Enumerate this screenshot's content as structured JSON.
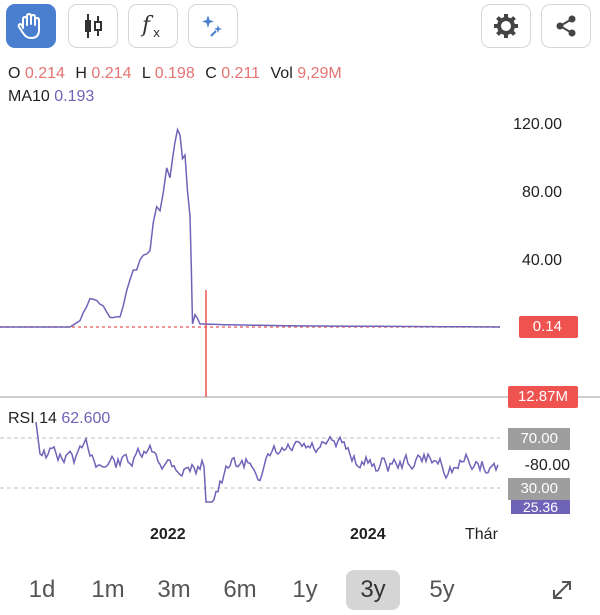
{
  "toolbar": {
    "tools": [
      {
        "name": "hand-tool-button",
        "icon": "hand-icon",
        "active": true
      },
      {
        "name": "candlestick-type-button",
        "icon": "candlestick-icon",
        "active": false
      },
      {
        "name": "indicators-button",
        "icon": "function-icon",
        "active": false
      },
      {
        "name": "magic-button",
        "icon": "sparkle-icon",
        "active": false
      }
    ],
    "settings_icon": "gear-icon",
    "share_icon": "share-icon"
  },
  "ohlc": {
    "o_label": "O",
    "o_value": "0.214",
    "h_label": "H",
    "h_value": "0.214",
    "l_label": "L",
    "l_value": "0.198",
    "c_label": "C",
    "c_value": "0.211",
    "vol_label": "Vol",
    "vol_value": "9,29M"
  },
  "ma": {
    "label": "MA10",
    "value": "0.193"
  },
  "price_axis": {
    "ticks": [
      "120.00",
      "80.00",
      "40.00"
    ],
    "current_price": "0.14",
    "volume_tag": "12.87M"
  },
  "rsi": {
    "label": "RSI 14",
    "value": "62.600",
    "upper": "70.00",
    "mid": "-80.00",
    "lower": "30.00",
    "partial": "25.36"
  },
  "time_axis": {
    "labels": [
      "2022",
      "2024",
      "Thár"
    ]
  },
  "ranges": {
    "items": [
      "1d",
      "1m",
      "3m",
      "6m",
      "1y",
      "3y",
      "5y"
    ],
    "active": "3y"
  },
  "colors": {
    "accent": "#4a7fd0",
    "price_tag": "#ef5350",
    "rsi_line": "#6f63b8",
    "line": "#6f63b8",
    "dotted": "#e57373"
  },
  "chart_data": {
    "type": "line",
    "title": "",
    "ylim": [
      -15,
      125
    ],
    "yticks": [
      40,
      80,
      120
    ],
    "current_price": 0.14,
    "price_path": [
      [
        0,
        0.14
      ],
      [
        0.14,
        0.14
      ],
      [
        0.16,
        4
      ],
      [
        0.18,
        18
      ],
      [
        0.2,
        15
      ],
      [
        0.22,
        6
      ],
      [
        0.24,
        6
      ],
      [
        0.26,
        30
      ],
      [
        0.28,
        40
      ],
      [
        0.3,
        50
      ],
      [
        0.32,
        75
      ],
      [
        0.34,
        95
      ],
      [
        0.35,
        110
      ],
      [
        0.36,
        120
      ],
      [
        0.37,
        95
      ],
      [
        0.38,
        70
      ],
      [
        0.385,
        2
      ],
      [
        0.39,
        8
      ],
      [
        0.4,
        2
      ],
      [
        0.45,
        1.5
      ],
      [
        0.6,
        0.8
      ],
      [
        1.0,
        0.14
      ]
    ]
  }
}
